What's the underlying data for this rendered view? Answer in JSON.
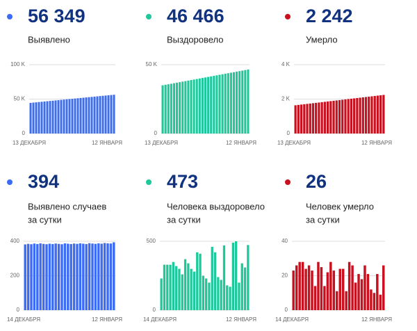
{
  "chart_data": [
    {
      "type": "bar",
      "headline": "56 349",
      "label": [
        "Выявлено"
      ],
      "color": "#3d6cf4",
      "categories": [
        "13 ДЕКАБРЯ",
        null,
        null,
        null,
        null,
        null,
        null,
        null,
        null,
        null,
        null,
        null,
        null,
        null,
        null,
        null,
        null,
        null,
        null,
        null,
        null,
        null,
        null,
        null,
        null,
        null,
        null,
        null,
        null,
        null,
        "12 ЯНВАРЯ"
      ],
      "values": [
        44529,
        44923,
        45317,
        45711,
        46105,
        46499,
        46893,
        47287,
        47681,
        48075,
        48469,
        48863,
        49257,
        49651,
        50045,
        50439,
        50833,
        51227,
        51621,
        52015,
        52409,
        52803,
        53197,
        53591,
        53985,
        54379,
        54773,
        55167,
        55561,
        55955,
        56349
      ],
      "ylim": [
        0,
        100000
      ],
      "yticks": [
        0,
        {
          "value": 50000,
          "label": "50 K"
        },
        {
          "value": 100000,
          "label": "100 K"
        }
      ],
      "grid": true
    },
    {
      "type": "bar",
      "headline": "46 466",
      "label": [
        "Выздоровело"
      ],
      "color": "#1fc89b",
      "categories": [
        "13 ДЕКАБРЯ",
        null,
        null,
        null,
        null,
        null,
        null,
        null,
        null,
        null,
        null,
        null,
        null,
        null,
        null,
        null,
        null,
        null,
        null,
        null,
        null,
        null,
        null,
        null,
        null,
        null,
        null,
        null,
        null,
        null,
        "12 ЯНВАРЯ"
      ],
      "values": [
        35006,
        35388,
        35770,
        36152,
        36534,
        36916,
        37298,
        37680,
        38062,
        38444,
        38826,
        39208,
        39590,
        39972,
        40354,
        40736,
        41118,
        41500,
        41882,
        42264,
        42646,
        43028,
        43410,
        43792,
        44174,
        44556,
        44938,
        45320,
        45702,
        46084,
        46466
      ],
      "ylim": [
        0,
        50000
      ],
      "yticks": [
        0,
        {
          "value": 50000,
          "label": "50 K"
        }
      ],
      "grid": true
    },
    {
      "type": "bar",
      "headline": "2 242",
      "label": [
        "Умерло"
      ],
      "color": "#c8101e",
      "categories": [
        "13 ДЕКАБРЯ",
        null,
        null,
        null,
        null,
        null,
        null,
        null,
        null,
        null,
        null,
        null,
        null,
        null,
        null,
        null,
        null,
        null,
        null,
        null,
        null,
        null,
        null,
        null,
        null,
        null,
        null,
        null,
        null,
        null,
        "12 ЯНВАРЯ"
      ],
      "values": [
        1642,
        1662,
        1682,
        1702,
        1722,
        1742,
        1762,
        1782,
        1802,
        1822,
        1842,
        1862,
        1882,
        1902,
        1922,
        1942,
        1962,
        1982,
        2002,
        2022,
        2042,
        2062,
        2082,
        2102,
        2122,
        2142,
        2162,
        2182,
        2202,
        2222,
        2242
      ],
      "ylim": [
        0,
        4000
      ],
      "yticks": [
        0,
        {
          "value": 2000,
          "label": "2 K"
        },
        {
          "value": 4000,
          "label": "4 K"
        }
      ],
      "grid": true
    },
    {
      "type": "bar",
      "headline": "394",
      "label": [
        "Выявлено случаев",
        "за сутки"
      ],
      "color": "#3d6cf4",
      "categories": [
        "14 ДЕКАБРЯ",
        null,
        null,
        null,
        null,
        null,
        null,
        null,
        null,
        null,
        null,
        null,
        null,
        null,
        null,
        null,
        null,
        null,
        null,
        null,
        null,
        null,
        null,
        null,
        null,
        null,
        null,
        null,
        null,
        "12 ЯНВАРЯ"
      ],
      "values": [
        382,
        385,
        383,
        387,
        384,
        388,
        385,
        383,
        386,
        384,
        387,
        385,
        383,
        388,
        386,
        384,
        387,
        385,
        388,
        386,
        384,
        389,
        387,
        385,
        388,
        386,
        390,
        388,
        387,
        394
      ],
      "ylim": [
        0,
        400
      ],
      "yticks": [
        0,
        200,
        400
      ],
      "grid": true
    },
    {
      "type": "bar",
      "headline": "473",
      "label": [
        "Человека выздоровело",
        "за сутки"
      ],
      "color": "#1fc89b",
      "categories": [
        "14 ДЕКАБРЯ",
        null,
        null,
        null,
        null,
        null,
        null,
        null,
        null,
        null,
        null,
        null,
        null,
        null,
        null,
        null,
        null,
        null,
        null,
        null,
        null,
        null,
        null,
        null,
        null,
        null,
        null,
        null,
        null,
        "12 ЯНВАРЯ"
      ],
      "values": [
        230,
        330,
        330,
        330,
        350,
        320,
        300,
        260,
        370,
        340,
        300,
        280,
        420,
        410,
        250,
        230,
        200,
        460,
        420,
        240,
        220,
        470,
        180,
        170,
        490,
        500,
        200,
        340,
        310,
        473
      ],
      "ylim": [
        0,
        500
      ],
      "yticks": [
        0,
        500
      ],
      "grid": true
    },
    {
      "type": "bar",
      "headline": "26",
      "label": [
        "Человек умерло",
        "за сутки"
      ],
      "color": "#c8101e",
      "categories": [
        "14 ДЕКАБРЯ",
        null,
        null,
        null,
        null,
        null,
        null,
        null,
        null,
        null,
        null,
        null,
        null,
        null,
        null,
        null,
        null,
        null,
        null,
        null,
        null,
        null,
        null,
        null,
        null,
        null,
        null,
        null,
        null,
        "12 ЯНВАРЯ"
      ],
      "values": [
        23,
        26,
        28,
        28,
        24,
        26,
        23,
        14,
        28,
        25,
        14,
        22,
        28,
        23,
        11,
        24,
        24,
        11,
        28,
        26,
        16,
        21,
        18,
        26,
        21,
        12,
        10,
        21,
        9,
        26
      ],
      "ylim": [
        0,
        40
      ],
      "yticks": [
        0,
        20,
        40
      ],
      "grid": true
    }
  ]
}
